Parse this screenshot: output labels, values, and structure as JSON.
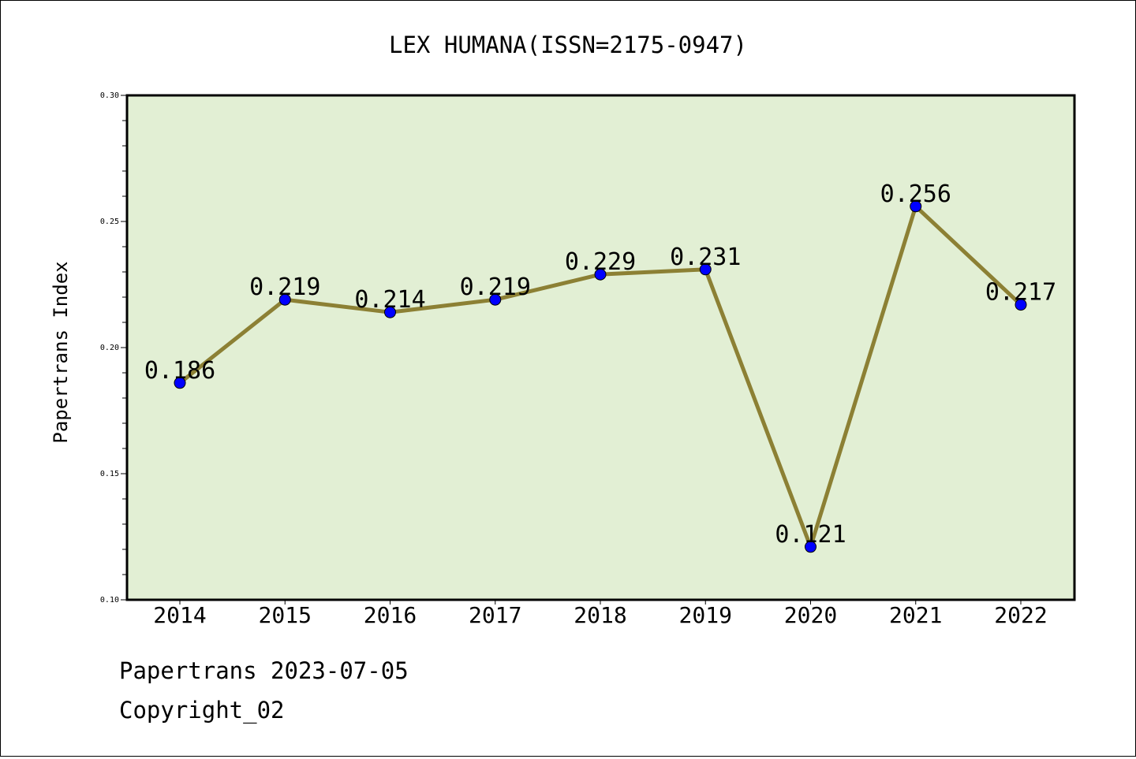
{
  "chart_data": {
    "type": "line",
    "title": "LEX HUMANA(ISSN=2175-0947)",
    "xlabel": "",
    "ylabel": "Papertrans Index",
    "categories": [
      "2014",
      "2015",
      "2016",
      "2017",
      "2018",
      "2019",
      "2020",
      "2021",
      "2022"
    ],
    "series": [
      {
        "values": [
          0.186,
          0.219,
          0.214,
          0.219,
          0.229,
          0.231,
          0.121,
          0.256,
          0.217
        ],
        "labels": [
          "0.186",
          "0.219",
          "0.214",
          "0.219",
          "0.229",
          "0.231",
          "0.121",
          "0.256",
          "0.217"
        ]
      }
    ],
    "ylim": [
      0.1,
      0.3
    ],
    "yticks": [
      "0.10",
      "0.15",
      "0.20",
      "0.25",
      "0.30"
    ],
    "grid": false,
    "colors": {
      "plot_background": "#e2efd4",
      "line": "#8c8034",
      "marker": "#0000ff"
    }
  },
  "footer": {
    "line1": "Papertrans 2023-07-05",
    "line2": "Copyright_02"
  }
}
